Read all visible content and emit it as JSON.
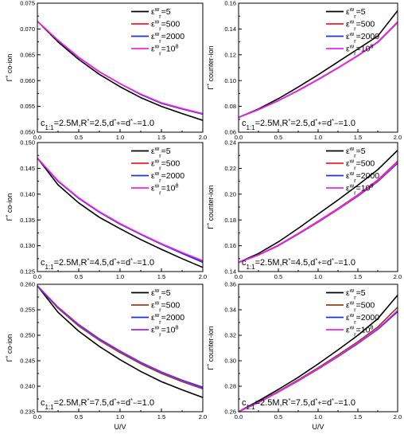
{
  "chart_data": [
    {
      "type": "line",
      "panel": "top-left",
      "ylabel": "Γ* co-ion",
      "xlabel": "",
      "xlim": [
        0,
        2.0
      ],
      "ylim": [
        0.05,
        0.075
      ],
      "yticks": [
        "0.050",
        "0.055",
        "0.060",
        "0.065",
        "0.070",
        "0.075"
      ],
      "xticks": [
        "0.0",
        "0.5",
        "1.0",
        "1.5",
        "2.0"
      ],
      "annotation": {
        "c": "c",
        "c_sub": "1:1",
        "rest": "=2.5M,R*=2.5,d*+=d*−=1.0"
      },
      "legend": [
        "εwr=5",
        "εwr=500",
        "εwr=2000",
        "εwr=10^8"
      ],
      "series": [
        {
          "name": "εwr=5",
          "color": "#000000",
          "x": [
            0,
            0.25,
            0.5,
            0.75,
            1.0,
            1.25,
            1.5,
            1.75,
            2.0
          ],
          "y": [
            0.0715,
            0.0675,
            0.0641,
            0.0612,
            0.0588,
            0.0567,
            0.055,
            0.0536,
            0.0523
          ]
        },
        {
          "name": "εwr=500",
          "color": "#e8202a",
          "x": [
            0,
            0.25,
            0.5,
            0.75,
            1.0,
            1.25,
            1.5,
            1.75,
            2.0
          ],
          "y": [
            0.0715,
            0.0678,
            0.0645,
            0.0617,
            0.0594,
            0.0573,
            0.0556,
            0.0545,
            0.0536
          ]
        },
        {
          "name": "εwr=2000",
          "color": "#2233cc",
          "x": [
            0,
            0.25,
            0.5,
            0.75,
            1.0,
            1.25,
            1.5,
            1.75,
            2.0
          ],
          "y": [
            0.0715,
            0.0678,
            0.0645,
            0.0617,
            0.0594,
            0.0573,
            0.0556,
            0.0545,
            0.0535
          ]
        },
        {
          "name": "εwr=10^8",
          "color": "#ee22ee",
          "x": [
            0,
            0.25,
            0.5,
            0.75,
            1.0,
            1.25,
            1.5,
            1.75,
            2.0
          ],
          "y": [
            0.0715,
            0.0678,
            0.0645,
            0.0617,
            0.0594,
            0.0574,
            0.0557,
            0.0546,
            0.0536
          ]
        }
      ]
    },
    {
      "type": "line",
      "panel": "top-right",
      "ylabel": "Γ* counter-ion",
      "xlabel": "",
      "xlim": [
        0,
        2.0
      ],
      "ylim": [
        0.06,
        0.16
      ],
      "yticks": [
        "0.06",
        "0.08",
        "0.10",
        "0.12",
        "0.14",
        "0.16"
      ],
      "xticks": [
        "0.0",
        "0.5",
        "1.0",
        "1.5",
        "2.0"
      ],
      "annotation": {
        "c": "c",
        "c_sub": "1:1",
        "rest": "=2.5M,R*=2.5,d*+=d*−=1.0"
      },
      "legend": [
        "εwr=5",
        "εwr=500",
        "εwr=2000",
        "εwr=10^8"
      ],
      "series": [
        {
          "name": "εwr=5",
          "color": "#000000",
          "x": [
            0,
            0.25,
            0.5,
            0.75,
            1.0,
            1.25,
            1.5,
            1.75,
            2.0
          ],
          "y": [
            0.0715,
            0.078,
            0.086,
            0.095,
            0.1045,
            0.1145,
            0.1245,
            0.1345,
            0.1542
          ]
        },
        {
          "name": "εwr=500",
          "color": "#e8202a",
          "x": [
            0,
            0.25,
            0.5,
            0.75,
            1.0,
            1.25,
            1.5,
            1.75,
            2.0
          ],
          "y": [
            0.0715,
            0.0775,
            0.0845,
            0.0925,
            0.101,
            0.11,
            0.1195,
            0.13,
            0.1455
          ]
        },
        {
          "name": "εwr=2000",
          "color": "#2233cc",
          "x": [
            0,
            0.25,
            0.5,
            0.75,
            1.0,
            1.25,
            1.5,
            1.75,
            2.0
          ],
          "y": [
            0.0715,
            0.0774,
            0.0844,
            0.0922,
            0.1007,
            0.1097,
            0.1192,
            0.1296,
            0.145
          ]
        },
        {
          "name": "εwr=10^8",
          "color": "#ee22ee",
          "x": [
            0,
            0.25,
            0.5,
            0.75,
            1.0,
            1.25,
            1.5,
            1.75,
            2.0
          ],
          "y": [
            0.0715,
            0.0775,
            0.0845,
            0.0924,
            0.1009,
            0.1099,
            0.1194,
            0.1298,
            0.1452
          ]
        }
      ]
    },
    {
      "type": "line",
      "panel": "middle-left",
      "ylabel": "Γ* co-ion",
      "xlabel": "",
      "xlim": [
        0,
        2.0
      ],
      "ylim": [
        0.125,
        0.15
      ],
      "yticks": [
        "0.125",
        "0.130",
        "0.135",
        "0.140",
        "0.145",
        "0.150"
      ],
      "xticks": [
        "0.0",
        "0.5",
        "1.0",
        "1.5",
        "2.0"
      ],
      "annotation": {
        "c": "c",
        "c_sub": "1:1",
        "rest": "=2.5M,R*=4.5,d*+=d*−=1.0"
      },
      "legend": [
        "εwr=5",
        "εwr=500",
        "εwr=2000",
        "εwr=10^8"
      ],
      "series": [
        {
          "name": "εwr=5",
          "color": "#000000",
          "x": [
            0,
            0.25,
            0.5,
            0.75,
            1.0,
            1.25,
            1.5,
            1.75,
            2.0
          ],
          "y": [
            0.147,
            0.1418,
            0.1383,
            0.1355,
            0.1333,
            0.1312,
            0.1293,
            0.1275,
            0.1258
          ]
        },
        {
          "name": "εwr=500",
          "color": "#e8202a",
          "x": [
            0,
            0.25,
            0.5,
            0.75,
            1.0,
            1.25,
            1.5,
            1.75,
            2.0
          ],
          "y": [
            0.147,
            0.1425,
            0.1392,
            0.1365,
            0.1342,
            0.1322,
            0.1303,
            0.1286,
            0.127
          ]
        },
        {
          "name": "εwr=2000",
          "color": "#2233cc",
          "x": [
            0,
            0.25,
            0.5,
            0.75,
            1.0,
            1.25,
            1.5,
            1.75,
            2.0
          ],
          "y": [
            0.147,
            0.1425,
            0.1392,
            0.1365,
            0.1342,
            0.1322,
            0.1303,
            0.1285,
            0.1268
          ]
        },
        {
          "name": "εwr=10^8",
          "color": "#ee22ee",
          "x": [
            0,
            0.25,
            0.5,
            0.75,
            1.0,
            1.25,
            1.5,
            1.75,
            2.0
          ],
          "y": [
            0.147,
            0.1426,
            0.1393,
            0.1366,
            0.1343,
            0.1323,
            0.1304,
            0.1287,
            0.1271
          ]
        }
      ]
    },
    {
      "type": "line",
      "panel": "middle-right",
      "ylabel": "Γ* counter-ion",
      "xlabel": "",
      "xlim": [
        0,
        2.0
      ],
      "ylim": [
        0.14,
        0.24
      ],
      "yticks": [
        "0.14",
        "0.16",
        "0.18",
        "0.20",
        "0.22",
        "0.24"
      ],
      "xticks": [
        "0.0",
        "0.5",
        "1.0",
        "1.5",
        "2.0"
      ],
      "annotation": {
        "c": "c",
        "c_sub": "1:1",
        "rest": "=2.5M,R*=4.5,d*+=d*−=1.0"
      },
      "legend": [
        "εwr=5",
        "εwr=500",
        "εwr=2000",
        "εwr=10^8"
      ],
      "series": [
        {
          "name": "εwr=5",
          "color": "#000000",
          "x": [
            0,
            0.25,
            0.5,
            0.75,
            1.0,
            1.25,
            1.5,
            1.75,
            2.0
          ],
          "y": [
            0.147,
            0.154,
            0.163,
            0.1735,
            0.1845,
            0.1955,
            0.207,
            0.219,
            0.234
          ]
        },
        {
          "name": "εwr=500",
          "color": "#e8202a",
          "x": [
            0,
            0.25,
            0.5,
            0.75,
            1.0,
            1.25,
            1.5,
            1.75,
            2.0
          ],
          "y": [
            0.147,
            0.153,
            0.1605,
            0.1695,
            0.179,
            0.189,
            0.1995,
            0.211,
            0.2255
          ]
        },
        {
          "name": "εwr=2000",
          "color": "#2233cc",
          "x": [
            0,
            0.25,
            0.5,
            0.75,
            1.0,
            1.25,
            1.5,
            1.75,
            2.0
          ],
          "y": [
            0.147,
            0.1528,
            0.16,
            0.169,
            0.1783,
            0.1882,
            0.1985,
            0.2098,
            0.224
          ]
        },
        {
          "name": "εwr=10^8",
          "color": "#ee22ee",
          "x": [
            0,
            0.25,
            0.5,
            0.75,
            1.0,
            1.25,
            1.5,
            1.75,
            2.0
          ],
          "y": [
            0.147,
            0.1529,
            0.1602,
            0.1692,
            0.1786,
            0.1885,
            0.199,
            0.2104,
            0.2248
          ]
        }
      ]
    },
    {
      "type": "line",
      "panel": "bottom-left",
      "ylabel": "Γ* co-ion",
      "xlabel": "U/V",
      "xlim": [
        0,
        2.0
      ],
      "ylim": [
        0.235,
        0.26
      ],
      "yticks": [
        "0.235",
        "0.240",
        "0.245",
        "0.250",
        "0.255",
        "0.260"
      ],
      "xticks": [
        "0.0",
        "0.5",
        "1.0",
        "1.5",
        "2.0"
      ],
      "annotation": {
        "c": "c",
        "c_sub": "1:1",
        "rest": "=2.5M,R*=7.5,d*+=d*−=1.0"
      },
      "legend": [
        "εwr=5",
        "εwr=500",
        "εwr=2000",
        "εwr=10^8"
      ],
      "series": [
        {
          "name": "εwr=5",
          "color": "#000000",
          "x": [
            0,
            0.25,
            0.5,
            0.75,
            1.0,
            1.25,
            1.5,
            1.75,
            2.0
          ],
          "y": [
            0.2597,
            0.2545,
            0.2508,
            0.2478,
            0.2452,
            0.2429,
            0.2409,
            0.2393,
            0.2378
          ]
        },
        {
          "name": "εwr=500",
          "color": "#8b4513",
          "x": [
            0,
            0.25,
            0.5,
            0.75,
            1.0,
            1.25,
            1.5,
            1.75,
            2.0
          ],
          "y": [
            0.2597,
            0.2553,
            0.2518,
            0.249,
            0.2466,
            0.2444,
            0.2425,
            0.2409,
            0.2395
          ]
        },
        {
          "name": "εwr=2000",
          "color": "#2233cc",
          "x": [
            0,
            0.25,
            0.5,
            0.75,
            1.0,
            1.25,
            1.5,
            1.75,
            2.0
          ],
          "y": [
            0.2597,
            0.2555,
            0.2521,
            0.2493,
            0.2469,
            0.2447,
            0.2428,
            0.2412,
            0.2398
          ]
        },
        {
          "name": "εwr=10^8",
          "color": "#a020f0",
          "x": [
            0,
            0.25,
            0.5,
            0.75,
            1.0,
            1.25,
            1.5,
            1.75,
            2.0
          ],
          "y": [
            0.2597,
            0.2555,
            0.252,
            0.2492,
            0.2468,
            0.2446,
            0.2427,
            0.2411,
            0.2396
          ]
        }
      ]
    },
    {
      "type": "line",
      "panel": "bottom-right",
      "ylabel": "Γ* counter-ion",
      "xlabel": "U/V",
      "xlim": [
        0,
        2.0
      ],
      "ylim": [
        0.26,
        0.36
      ],
      "yticks": [
        "0.26",
        "0.28",
        "0.30",
        "0.32",
        "0.34",
        "0.36"
      ],
      "xticks": [
        "0.0",
        "0.5",
        "1.0",
        "1.5",
        "2.0"
      ],
      "annotation": {
        "c": "c",
        "c_sub": "1:1",
        "rest": "=2.5M,R*=7.5,d*+=d*−=1.0"
      },
      "legend": [
        "εwr=5",
        "εwr=500",
        "εwr=2000",
        "εwr=10^8"
      ],
      "series": [
        {
          "name": "εwr=5",
          "color": "#000000",
          "x": [
            0,
            0.25,
            0.5,
            0.75,
            1.0,
            1.25,
            1.5,
            1.75,
            2.0
          ],
          "y": [
            0.26,
            0.2685,
            0.2775,
            0.287,
            0.2975,
            0.3085,
            0.32,
            0.333,
            0.3515
          ]
        },
        {
          "name": "εwr=500",
          "color": "#8b4513",
          "x": [
            0,
            0.25,
            0.5,
            0.75,
            1.0,
            1.25,
            1.5,
            1.75,
            2.0
          ],
          "y": [
            0.26,
            0.2675,
            0.276,
            0.285,
            0.2945,
            0.3045,
            0.315,
            0.3265,
            0.342
          ]
        },
        {
          "name": "εwr=2000",
          "color": "#2233cc",
          "x": [
            0,
            0.25,
            0.5,
            0.75,
            1.0,
            1.25,
            1.5,
            1.75,
            2.0
          ],
          "y": [
            0.26,
            0.2672,
            0.2754,
            0.2842,
            0.2935,
            0.3032,
            0.3135,
            0.3246,
            0.3385
          ]
        },
        {
          "name": "εwr=10^8",
          "color": "#ee22ee",
          "x": [
            0,
            0.25,
            0.5,
            0.75,
            1.0,
            1.25,
            1.5,
            1.75,
            2.0
          ],
          "y": [
            0.26,
            0.2673,
            0.2756,
            0.2845,
            0.2938,
            0.3036,
            0.314,
            0.3252,
            0.3395
          ]
        }
      ]
    }
  ]
}
